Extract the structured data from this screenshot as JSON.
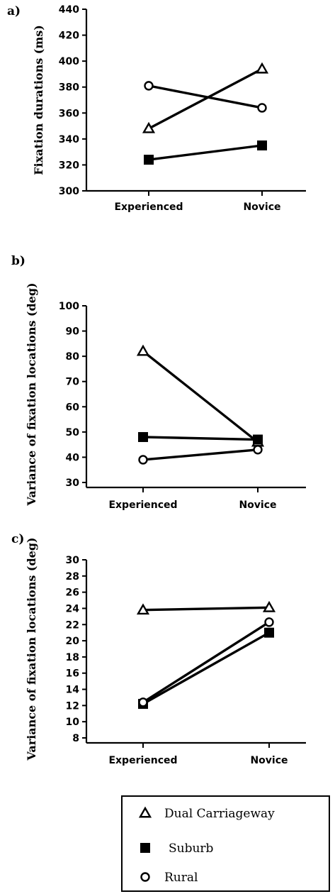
{
  "chart_data": [
    {
      "type": "line",
      "panel_label": "a)",
      "title": "",
      "ylabel": "Fixation durations (ms)",
      "xlabel": "",
      "categories": [
        "Experienced",
        "Novice"
      ],
      "ylim": [
        300,
        440
      ],
      "yticks": [
        300,
        320,
        340,
        360,
        380,
        400,
        420,
        440
      ],
      "series": [
        {
          "name": "Dual Carriageway",
          "marker": "triangle",
          "values": [
            348,
            394
          ]
        },
        {
          "name": "Suburb",
          "marker": "square",
          "values": [
            324,
            335
          ]
        },
        {
          "name": "Rural",
          "marker": "circle",
          "values": [
            381,
            364
          ]
        }
      ]
    },
    {
      "type": "line",
      "panel_label": "b)",
      "title": "",
      "ylabel": "Variance of fixation locations (deg)",
      "xlabel": "",
      "categories": [
        "Experienced",
        "Novice"
      ],
      "ylim": [
        30,
        100
      ],
      "yticks": [
        30,
        40,
        50,
        60,
        70,
        80,
        90,
        100
      ],
      "series": [
        {
          "name": "Dual Carriageway",
          "marker": "triangle",
          "values": [
            82,
            46
          ]
        },
        {
          "name": "Suburb",
          "marker": "square",
          "values": [
            48,
            47
          ]
        },
        {
          "name": "Rural",
          "marker": "circle",
          "values": [
            39,
            43
          ]
        }
      ]
    },
    {
      "type": "line",
      "panel_label": "c)",
      "title": "",
      "ylabel": "Variance of fixation locations (deg)",
      "xlabel": "",
      "categories": [
        "Experienced",
        "Novice"
      ],
      "ylim": [
        8,
        30
      ],
      "yticks": [
        8,
        10,
        12,
        14,
        16,
        18,
        20,
        22,
        24,
        26,
        28,
        30
      ],
      "series": [
        {
          "name": "Dual Carriageway",
          "marker": "triangle",
          "values": [
            23.8,
            24.1
          ]
        },
        {
          "name": "Suburb",
          "marker": "square",
          "values": [
            12.2,
            21.0
          ]
        },
        {
          "name": "Rural",
          "marker": "circle",
          "values": [
            12.4,
            22.3
          ]
        }
      ]
    }
  ],
  "legend": {
    "placement": "bottom",
    "entries": [
      {
        "label": "Dual Carriageway",
        "marker": "triangle"
      },
      {
        "label": "Suburb",
        "marker": "square"
      },
      {
        "label": "Rural",
        "marker": "circle"
      }
    ]
  }
}
